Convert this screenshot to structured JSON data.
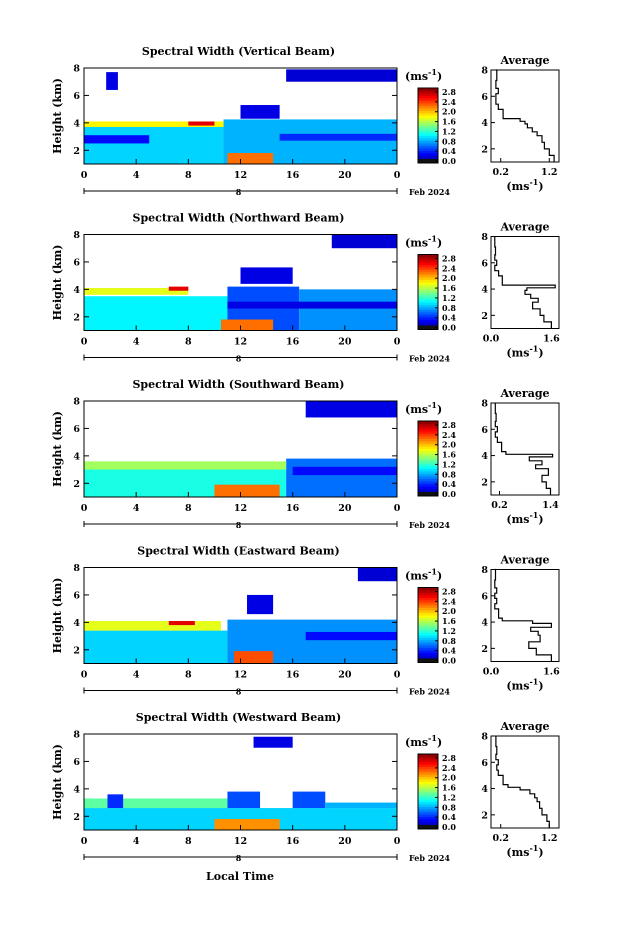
{
  "figure": {
    "xlabel": "Local Time"
  },
  "chart_data": [
    {
      "type": "heatmap",
      "title": "Spectral Width (Vertical Beam)",
      "ylabel": "Height (km)",
      "unit": "(ms",
      "unit_sup": "-1",
      "unit_close": ")",
      "x_ticks": [
        "0",
        "4",
        "8",
        "12",
        "16",
        "20",
        "0"
      ],
      "x_sub": "8",
      "date": "Feb 2024",
      "y_ticks": [
        "2",
        "4",
        "6",
        "8"
      ],
      "ylim": [
        1,
        8
      ],
      "xlim": [
        0,
        24
      ],
      "colorbar_ticks": [
        "0.0",
        "0.4",
        "0.8",
        "1.2",
        "1.6",
        "2.0",
        "2.4",
        "2.8"
      ],
      "colorbar_range": [
        0,
        3.0
      ],
      "bands": [
        {
          "x0": 0.0,
          "x1": 10.7,
          "y0": 1.0,
          "y1": 4.0,
          "v": 1.0
        },
        {
          "x0": 10.7,
          "x1": 24.0,
          "y0": 1.0,
          "y1": 4.25,
          "v": 0.9
        },
        {
          "x0": 0.0,
          "x1": 10.7,
          "y0": 3.7,
          "y1": 4.1,
          "v": 1.9
        },
        {
          "x0": 8.0,
          "x1": 10.0,
          "y0": 3.8,
          "y1": 4.1,
          "v": 2.7
        },
        {
          "x0": 11.0,
          "x1": 14.5,
          "y0": 1.0,
          "y1": 1.8,
          "v": 2.3
        },
        {
          "x0": 0.0,
          "x1": 5.0,
          "y0": 2.5,
          "y1": 3.1,
          "v": 0.4
        },
        {
          "x0": 15.0,
          "x1": 24.0,
          "y0": 2.7,
          "y1": 3.2,
          "v": 0.5
        },
        {
          "x0": 1.7,
          "x1": 2.6,
          "y0": 6.4,
          "y1": 7.7,
          "v": 0.3
        },
        {
          "x0": 15.5,
          "x1": 24.0,
          "y0": 7.0,
          "y1": 7.9,
          "v": 0.25
        },
        {
          "x0": 12.0,
          "x1": 15.0,
          "y0": 4.3,
          "y1": 5.3,
          "v": 0.3
        }
      ],
      "avg": {
        "title": "Average",
        "x_ticks": [
          "0.2",
          "1.2"
        ],
        "xlim": [
          0,
          1.4
        ],
        "y_ticks": [
          "2",
          "4",
          "6",
          "8"
        ],
        "ylim": [
          1,
          8
        ],
        "unit": "(ms",
        "unit_sup": "-1",
        "unit_close": ")",
        "x": [
          1.3,
          1.2,
          1.1,
          1.05,
          0.95,
          0.85,
          0.75,
          0.7,
          0.6,
          0.25,
          0.15,
          0.1,
          0.1,
          0.15,
          0.1,
          0.12,
          0.1
        ],
        "y": [
          1.0,
          1.5,
          2.0,
          2.5,
          3.0,
          3.3,
          3.6,
          3.9,
          4.1,
          4.3,
          5.0,
          5.4,
          5.8,
          6.2,
          6.6,
          7.2,
          8.0
        ]
      }
    },
    {
      "type": "heatmap",
      "title": "Spectral Width (Northward Beam)",
      "ylabel": "Height (km)",
      "unit": "(ms",
      "unit_sup": "-1",
      "unit_close": ")",
      "x_ticks": [
        "0",
        "4",
        "8",
        "12",
        "16",
        "20",
        "0"
      ],
      "x_sub": "8",
      "date": "Feb 2024",
      "y_ticks": [
        "2",
        "4",
        "6",
        "8"
      ],
      "ylim": [
        1,
        8
      ],
      "xlim": [
        0,
        24
      ],
      "colorbar_ticks": [
        "0.0",
        "0.4",
        "0.8",
        "1.2",
        "1.6",
        "2.0",
        "2.4",
        "2.8"
      ],
      "colorbar_range": [
        0,
        3.0
      ],
      "bands": [
        {
          "x0": 0.0,
          "x1": 11.0,
          "y0": 1.0,
          "y1": 3.5,
          "v": 1.1
        },
        {
          "x0": 11.0,
          "x1": 16.5,
          "y0": 1.0,
          "y1": 4.2,
          "v": 0.6
        },
        {
          "x0": 16.5,
          "x1": 24.0,
          "y0": 1.0,
          "y1": 4.0,
          "v": 0.8
        },
        {
          "x0": 0.0,
          "x1": 8.0,
          "y0": 3.6,
          "y1": 4.1,
          "v": 1.8
        },
        {
          "x0": 6.5,
          "x1": 8.0,
          "y0": 3.9,
          "y1": 4.2,
          "v": 2.7
        },
        {
          "x0": 10.5,
          "x1": 14.5,
          "y0": 1.0,
          "y1": 1.8,
          "v": 2.3
        },
        {
          "x0": 11.0,
          "x1": 24.0,
          "y0": 2.6,
          "y1": 3.1,
          "v": 0.3
        },
        {
          "x0": 19.0,
          "x1": 24.0,
          "y0": 7.0,
          "y1": 8.0,
          "v": 0.25
        },
        {
          "x0": 12.0,
          "x1": 16.0,
          "y0": 4.4,
          "y1": 5.6,
          "v": 0.3
        }
      ],
      "avg": {
        "title": "Average",
        "x_ticks": [
          "0.0",
          "1.6"
        ],
        "xlim": [
          0,
          1.8
        ],
        "y_ticks": [
          "2",
          "4",
          "6",
          "8"
        ],
        "ylim": [
          1,
          8
        ],
        "unit": "(ms",
        "unit_sup": "-1",
        "unit_close": ")",
        "x": [
          1.6,
          1.4,
          1.3,
          1.1,
          1.25,
          1.05,
          0.9,
          0.95,
          1.7,
          0.3,
          0.2,
          0.1,
          0.15,
          0.1,
          0.12,
          0.1,
          0.1
        ],
        "y": [
          1.0,
          1.5,
          2.0,
          2.5,
          3.0,
          3.3,
          3.6,
          3.9,
          4.1,
          4.3,
          5.0,
          5.4,
          5.8,
          6.2,
          6.6,
          7.2,
          8.0
        ]
      }
    },
    {
      "type": "heatmap",
      "title": "Spectral Width (Southward Beam)",
      "ylabel": "Height (km)",
      "unit": "(ms",
      "unit_sup": "-1",
      "unit_close": ")",
      "x_ticks": [
        "0",
        "4",
        "8",
        "12",
        "16",
        "20",
        "0"
      ],
      "x_sub": "8",
      "date": "Feb 2024",
      "y_ticks": [
        "2",
        "4",
        "6",
        "8"
      ],
      "ylim": [
        1,
        8
      ],
      "xlim": [
        0,
        24
      ],
      "colorbar_ticks": [
        "0.0",
        "0.4",
        "0.8",
        "1.2",
        "1.6",
        "2.0",
        "2.4",
        "2.8"
      ],
      "colorbar_range": [
        0,
        3.0
      ],
      "bands": [
        {
          "x0": 0.0,
          "x1": 15.5,
          "y0": 1.0,
          "y1": 3.2,
          "v": 1.2
        },
        {
          "x0": 15.5,
          "x1": 24.0,
          "y0": 1.0,
          "y1": 3.8,
          "v": 0.7
        },
        {
          "x0": 0.0,
          "x1": 15.5,
          "y0": 3.0,
          "y1": 3.6,
          "v": 1.6
        },
        {
          "x0": 10.0,
          "x1": 15.0,
          "y0": 1.0,
          "y1": 1.9,
          "v": 2.3
        },
        {
          "x0": 16.0,
          "x1": 24.0,
          "y0": 2.6,
          "y1": 3.2,
          "v": 0.4
        },
        {
          "x0": 17.0,
          "x1": 24.0,
          "y0": 6.8,
          "y1": 8.0,
          "v": 0.3
        }
      ],
      "avg": {
        "title": "Average",
        "x_ticks": [
          "0.2",
          "1.4"
        ],
        "xlim": [
          0,
          1.6
        ],
        "y_ticks": [
          "2",
          "4",
          "6",
          "8"
        ],
        "ylim": [
          1,
          8
        ],
        "unit": "(ms",
        "unit_sup": "-1",
        "unit_close": ")",
        "x": [
          1.4,
          1.3,
          1.2,
          1.35,
          1.05,
          1.2,
          0.9,
          1.45,
          0.35,
          0.25,
          0.15,
          0.1,
          0.15,
          0.1,
          0.12,
          0.1,
          0.1
        ],
        "y": [
          1.0,
          1.5,
          2.0,
          2.5,
          3.0,
          3.3,
          3.6,
          3.9,
          4.1,
          4.3,
          5.0,
          5.4,
          5.8,
          6.2,
          6.6,
          7.2,
          8.0
        ]
      }
    },
    {
      "type": "heatmap",
      "title": "Spectral Width (Eastward Beam)",
      "ylabel": "Height (km)",
      "unit": "(ms",
      "unit_sup": "-1",
      "unit_close": ")",
      "x_ticks": [
        "0",
        "4",
        "8",
        "12",
        "16",
        "20",
        "0"
      ],
      "x_sub": "8",
      "date": "Feb 2024",
      "y_ticks": [
        "2",
        "4",
        "6",
        "8"
      ],
      "ylim": [
        1,
        8
      ],
      "xlim": [
        0,
        24
      ],
      "colorbar_ticks": [
        "0.0",
        "0.4",
        "0.8",
        "1.2",
        "1.6",
        "2.0",
        "2.4",
        "2.8"
      ],
      "colorbar_range": [
        0,
        3.0
      ],
      "bands": [
        {
          "x0": 0.0,
          "x1": 11.0,
          "y0": 1.0,
          "y1": 3.4,
          "v": 1.0
        },
        {
          "x0": 11.0,
          "x1": 24.0,
          "y0": 1.0,
          "y1": 4.2,
          "v": 0.8
        },
        {
          "x0": 0.0,
          "x1": 10.5,
          "y0": 3.4,
          "y1": 4.1,
          "v": 1.8
        },
        {
          "x0": 6.5,
          "x1": 8.5,
          "y0": 3.8,
          "y1": 4.1,
          "v": 2.7
        },
        {
          "x0": 11.5,
          "x1": 14.5,
          "y0": 1.0,
          "y1": 1.9,
          "v": 2.4
        },
        {
          "x0": 17.0,
          "x1": 24.0,
          "y0": 2.7,
          "y1": 3.3,
          "v": 0.4
        },
        {
          "x0": 21.0,
          "x1": 24.0,
          "y0": 7.0,
          "y1": 8.0,
          "v": 0.25
        },
        {
          "x0": 12.5,
          "x1": 14.5,
          "y0": 4.6,
          "y1": 6.0,
          "v": 0.3
        }
      ],
      "avg": {
        "title": "Average",
        "x_ticks": [
          "0.0",
          "1.6"
        ],
        "xlim": [
          0,
          1.8
        ],
        "y_ticks": [
          "2",
          "4",
          "6",
          "8"
        ],
        "ylim": [
          1,
          8
        ],
        "unit": "(ms",
        "unit_sup": "-1",
        "unit_close": ")",
        "x": [
          1.6,
          1.2,
          1.0,
          1.3,
          1.25,
          1.05,
          1.6,
          1.1,
          0.3,
          0.2,
          0.1,
          0.15,
          0.1,
          0.15,
          0.1,
          0.12,
          0.1
        ],
        "y": [
          1.0,
          1.5,
          2.0,
          2.5,
          3.0,
          3.3,
          3.6,
          3.9,
          4.1,
          4.3,
          5.0,
          5.4,
          5.8,
          6.2,
          6.6,
          7.2,
          8.0
        ]
      }
    },
    {
      "type": "heatmap",
      "title": "Spectral Width (Westward Beam)",
      "ylabel": "Height (km)",
      "unit": "(ms",
      "unit_sup": "-1",
      "unit_close": ")",
      "x_ticks": [
        "0",
        "4",
        "8",
        "12",
        "16",
        "20",
        "0"
      ],
      "x_sub": "8",
      "date": "Feb 2024",
      "y_ticks": [
        "2",
        "4",
        "6",
        "8"
      ],
      "ylim": [
        1,
        8
      ],
      "xlim": [
        0,
        24
      ],
      "colorbar_ticks": [
        "0.0",
        "0.4",
        "0.8",
        "1.2",
        "1.6",
        "2.0",
        "2.4",
        "2.8"
      ],
      "colorbar_range": [
        0,
        3.0
      ],
      "bands": [
        {
          "x0": 0.0,
          "x1": 24.0,
          "y0": 1.0,
          "y1": 2.6,
          "v": 1.0
        },
        {
          "x0": 0.0,
          "x1": 11.0,
          "y0": 2.6,
          "y1": 3.3,
          "v": 1.4
        },
        {
          "x0": 11.0,
          "x1": 13.5,
          "y0": 2.6,
          "y1": 3.8,
          "v": 0.6
        },
        {
          "x0": 16.0,
          "x1": 18.5,
          "y0": 2.6,
          "y1": 3.8,
          "v": 0.6
        },
        {
          "x0": 1.8,
          "x1": 3.0,
          "y0": 2.6,
          "y1": 3.6,
          "v": 0.5
        },
        {
          "x0": 10.0,
          "x1": 15.0,
          "y0": 1.0,
          "y1": 1.8,
          "v": 2.2
        },
        {
          "x0": 18.5,
          "x1": 24.0,
          "y0": 2.6,
          "y1": 3.0,
          "v": 0.9
        },
        {
          "x0": 13.0,
          "x1": 16.0,
          "y0": 7.0,
          "y1": 7.8,
          "v": 0.3
        }
      ],
      "avg": {
        "title": "Average",
        "x_ticks": [
          "0.2",
          "1.2"
        ],
        "xlim": [
          0,
          1.4
        ],
        "y_ticks": [
          "2",
          "4",
          "6",
          "8"
        ],
        "ylim": [
          1,
          8
        ],
        "unit": "(ms",
        "unit_sup": "-1",
        "unit_close": ")",
        "x": [
          1.2,
          1.15,
          1.05,
          1.0,
          0.95,
          0.9,
          0.8,
          0.6,
          0.35,
          0.25,
          0.15,
          0.12,
          0.15,
          0.1,
          0.12,
          0.1,
          0.1
        ],
        "y": [
          1.0,
          1.5,
          2.0,
          2.5,
          3.0,
          3.3,
          3.6,
          3.9,
          4.1,
          4.3,
          5.0,
          5.4,
          5.8,
          6.2,
          6.6,
          7.2,
          8.0
        ]
      }
    }
  ]
}
